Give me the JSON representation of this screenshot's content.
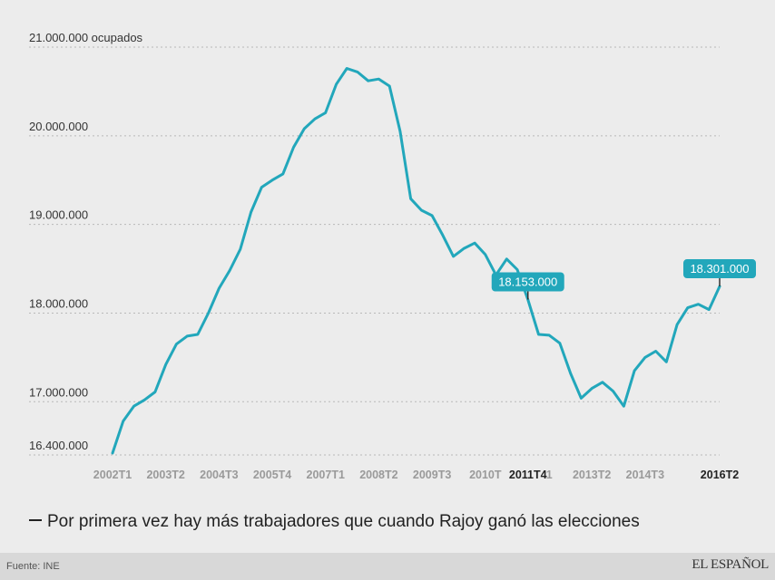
{
  "chart_data": {
    "type": "line",
    "title": "",
    "unit_label": "ocupados",
    "ylim": [
      16400000,
      21000000
    ],
    "yticks": [
      {
        "value": 21000000,
        "label": "21.000.000 ocupados"
      },
      {
        "value": 20000000,
        "label": "20.000.000"
      },
      {
        "value": 19000000,
        "label": "19.000.000"
      },
      {
        "value": 18000000,
        "label": "18.000.000"
      },
      {
        "value": 17000000,
        "label": "17.000.000"
      },
      {
        "value": 16400000,
        "label": "16.400.000"
      }
    ],
    "xticks": [
      {
        "index": 0,
        "label": "2002T1",
        "highlight": false
      },
      {
        "index": 5,
        "label": "2003T2",
        "highlight": false
      },
      {
        "index": 10,
        "label": "2004T3",
        "highlight": false
      },
      {
        "index": 15,
        "label": "2005T4",
        "highlight": false
      },
      {
        "index": 20,
        "label": "2007T1",
        "highlight": false
      },
      {
        "index": 25,
        "label": "2008T2",
        "highlight": false
      },
      {
        "index": 30,
        "label": "2009T3",
        "highlight": false
      },
      {
        "index": 35,
        "label": "2010T",
        "highlight": false
      },
      {
        "index": 39,
        "label": "2011T4",
        "highlight": true
      },
      {
        "index": 41,
        "label": "1",
        "highlight": false
      },
      {
        "index": 45,
        "label": "2013T2",
        "highlight": false
      },
      {
        "index": 50,
        "label": "2014T3",
        "highlight": false
      },
      {
        "index": 57,
        "label": "2016T2",
        "highlight": true
      }
    ],
    "series": [
      {
        "name": "Ocupados",
        "color": "#22a7bb",
        "values": [
          16420000,
          16780000,
          16950000,
          17020000,
          17110000,
          17420000,
          17650000,
          17740000,
          17760000,
          18000000,
          18280000,
          18480000,
          18720000,
          19140000,
          19420000,
          19500000,
          19570000,
          19870000,
          20080000,
          20190000,
          20260000,
          20580000,
          20760000,
          20720000,
          20620000,
          20640000,
          20560000,
          20050000,
          19290000,
          19160000,
          19100000,
          18880000,
          18640000,
          18730000,
          18790000,
          18660000,
          18430000,
          18610000,
          18490000,
          18153000,
          17760000,
          17750000,
          17660000,
          17320000,
          17040000,
          17150000,
          17220000,
          17120000,
          16950000,
          17350000,
          17500000,
          17570000,
          17450000,
          17870000,
          18060000,
          18100000,
          18040000,
          18301000
        ]
      }
    ],
    "annotations": [
      {
        "index": 39,
        "label": "18.153.000"
      },
      {
        "index": 57,
        "label": "18.301.000"
      }
    ]
  },
  "legend_text": "Por primera vez hay más trabajadores que cuando Rajoy ganó las elecciones",
  "footer": {
    "source": "Fuente: INE",
    "brand": "EL ESPAÑOL"
  }
}
